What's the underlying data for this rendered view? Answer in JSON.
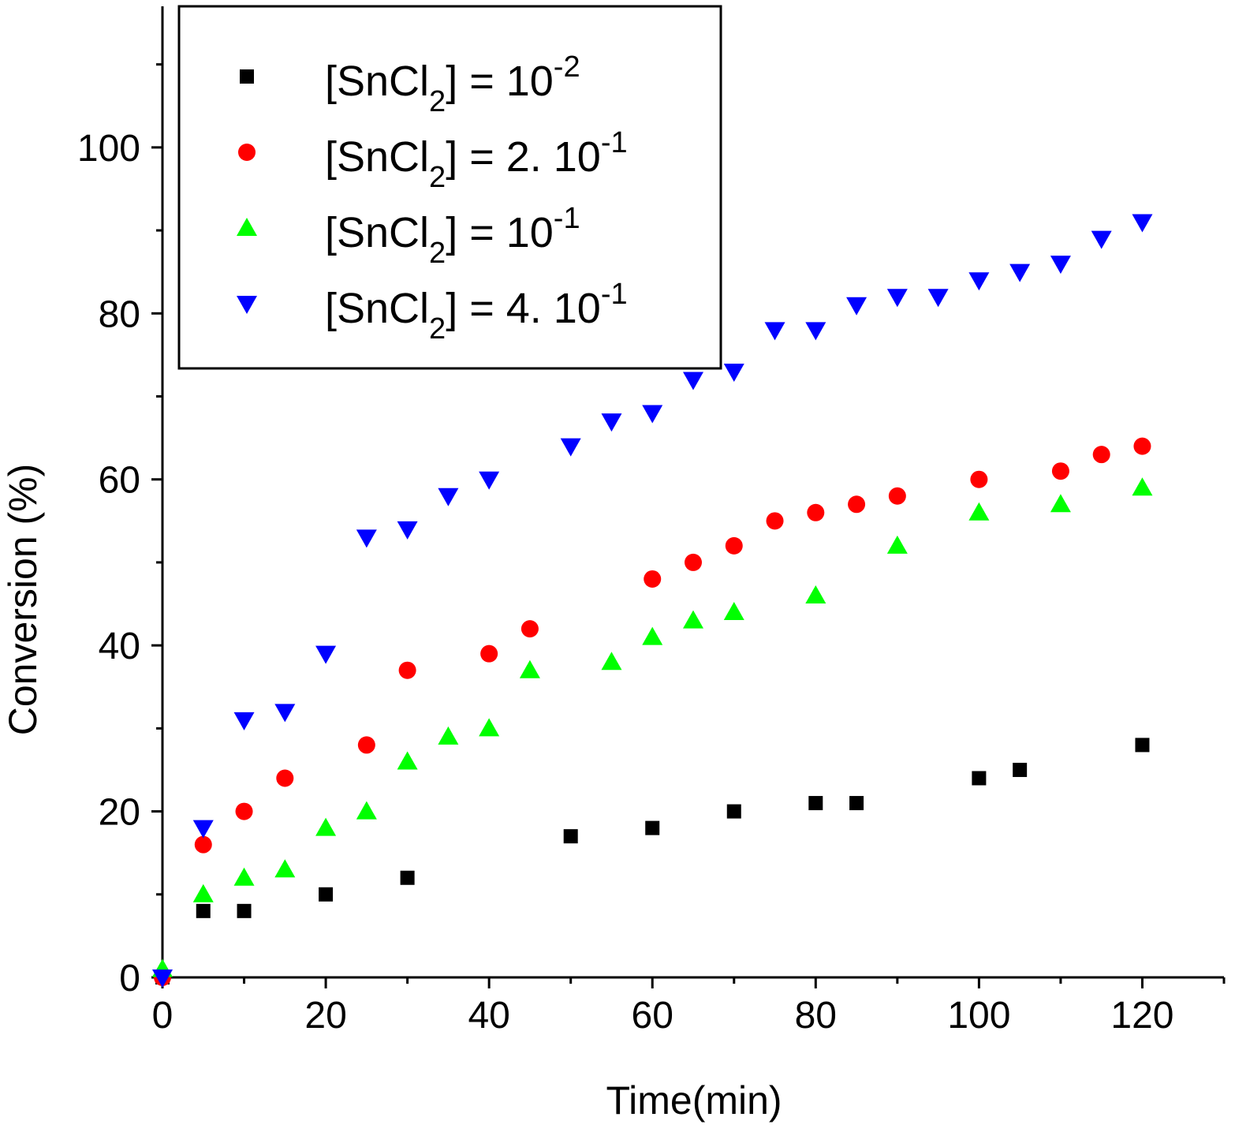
{
  "chart_data": {
    "type": "scatter",
    "title": "",
    "xlabel": "Time(min)",
    "ylabel": "Conversion (%)",
    "xlim": [
      0,
      130
    ],
    "ylim": [
      0,
      117
    ],
    "xticks": [
      0,
      20,
      40,
      60,
      80,
      100,
      120
    ],
    "yticks": [
      0,
      20,
      40,
      60,
      80,
      100
    ],
    "grid": false,
    "legend_position": "top-left",
    "series": [
      {
        "name": "[SnCl2] = 10-2",
        "legend": {
          "prefix": "[SnCl",
          "sub": "2",
          "mid": "] = 10",
          "sup": "-2"
        },
        "marker": "square",
        "color": "#000000",
        "x": [
          0,
          5,
          10,
          20,
          30,
          50,
          60,
          70,
          80,
          85,
          100,
          105,
          120
        ],
        "y": [
          0,
          8,
          8,
          10,
          12,
          17,
          18,
          20,
          21,
          21,
          24,
          25,
          28
        ]
      },
      {
        "name": "[SnCl2] = 2. 10-1",
        "legend": {
          "prefix": "[SnCl",
          "sub": "2",
          "mid": "] = 2. 10",
          "sup": "-1"
        },
        "marker": "circle",
        "color": "#ff0000",
        "x": [
          0,
          5,
          10,
          15,
          25,
          30,
          40,
          45,
          60,
          65,
          70,
          75,
          80,
          85,
          90,
          100,
          110,
          115,
          120
        ],
        "y": [
          0,
          16,
          20,
          24,
          28,
          37,
          39,
          42,
          48,
          50,
          52,
          55,
          56,
          57,
          58,
          60,
          61,
          63,
          64
        ]
      },
      {
        "name": "[SnCl2] = 10-1",
        "legend": {
          "prefix": "[SnCl",
          "sub": "2",
          "mid": "] = 10",
          "sup": "-1"
        },
        "marker": "triangle-up",
        "color": "#00ff00",
        "x": [
          0,
          5,
          10,
          15,
          20,
          25,
          30,
          35,
          40,
          45,
          55,
          60,
          65,
          70,
          80,
          90,
          100,
          110,
          120
        ],
        "y": [
          1,
          10,
          12,
          13,
          18,
          20,
          26,
          29,
          30,
          37,
          38,
          41,
          43,
          44,
          46,
          52,
          56,
          57,
          59
        ]
      },
      {
        "name": "[SnCl2] = 4. 10-1",
        "legend": {
          "prefix": "[SnCl",
          "sub": "2",
          "mid": "] = 4. 10",
          "sup": "-1"
        },
        "marker": "triangle-down",
        "color": "#0000ff",
        "x": [
          0,
          5,
          10,
          15,
          20,
          25,
          30,
          35,
          40,
          50,
          55,
          60,
          65,
          70,
          75,
          80,
          85,
          90,
          95,
          100,
          105,
          110,
          115,
          120
        ],
        "y": [
          0,
          18,
          31,
          32,
          39,
          53,
          54,
          58,
          60,
          64,
          67,
          68,
          72,
          73,
          78,
          78,
          81,
          82,
          82,
          84,
          85,
          86,
          89,
          91
        ]
      }
    ]
  }
}
